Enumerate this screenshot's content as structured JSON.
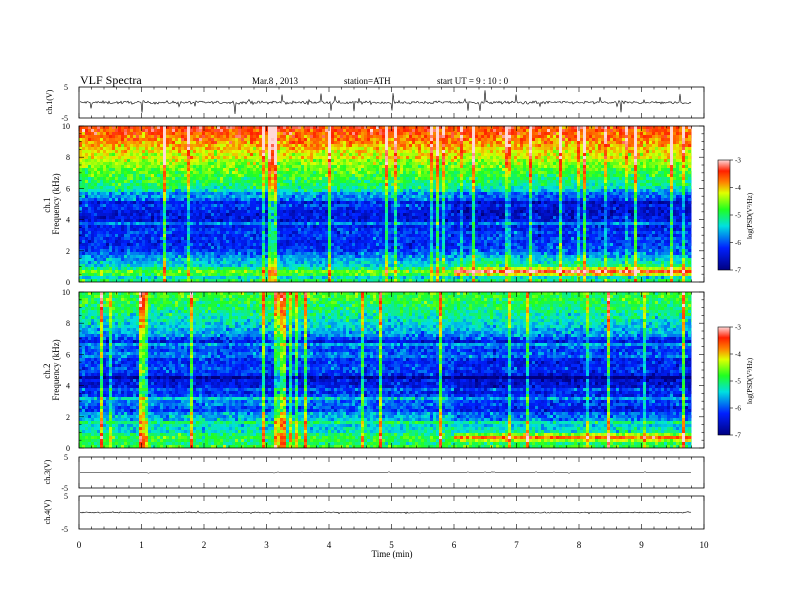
{
  "header": {
    "title": "VLF  Spectra",
    "date": "Mar.8  , 2013",
    "station": "station=ATH",
    "start": "start  UT  =   9 : 10 : 0"
  },
  "chart_data": [
    {
      "type": "line",
      "panel": "ch1-waveform",
      "ylabel": "ch.1(V)",
      "ylim": [
        -5,
        5
      ],
      "yticks": [
        "5",
        "-5"
      ],
      "xlim": [
        0,
        10
      ],
      "data_end_x": 9.8,
      "trace": {
        "baseline": 0,
        "typical_amplitude": 1,
        "spike_amplitude": 4
      }
    },
    {
      "type": "heatmap",
      "panel": "ch1-spectrogram",
      "ylabel": "ch.1\nFrequency  (kHz)",
      "ylim": [
        0,
        10
      ],
      "yticks": [
        "0",
        "2",
        "4",
        "6",
        "8",
        "10"
      ],
      "xlim": [
        0,
        10
      ],
      "data_end_x": 9.8,
      "regime_change_x": 6.0,
      "colorbar": {
        "label": "log(PSD(V²/Hz)",
        "range": [
          -7,
          -3
        ],
        "ticks": [
          "-3",
          "-4",
          "-5",
          "-6",
          "-7"
        ]
      },
      "approx_log_psd_profile": {
        "frequency_khz": [
          0.3,
          0.7,
          1.0,
          1.5,
          2.0,
          2.6,
          3.0,
          3.5,
          4.0,
          4.5,
          5.0,
          5.5,
          6.0,
          7.0,
          8.0,
          9.0,
          10.0
        ],
        "before_6min": [
          -5.0,
          -4.6,
          -5.4,
          -5.6,
          -6.1,
          -6.3,
          -6.0,
          -6.3,
          -6.4,
          -6.4,
          -6.0,
          -5.7,
          -5.1,
          -4.7,
          -4.3,
          -3.8,
          -3.4
        ],
        "after_6min": [
          -5.0,
          -3.2,
          -5.0,
          -5.4,
          -6.0,
          -6.1,
          -6.0,
          -6.3,
          -6.4,
          -6.6,
          -6.3,
          -6.0,
          -5.3,
          -4.8,
          -4.3,
          -3.8,
          -3.5
        ]
      }
    },
    {
      "type": "heatmap",
      "panel": "ch2-spectrogram",
      "ylabel": "ch.2\nFrequency  (kHz)",
      "ylim": [
        0,
        10
      ],
      "yticks": [
        "0",
        "2",
        "4",
        "6",
        "8",
        "10"
      ],
      "xlim": [
        0,
        10
      ],
      "data_end_x": 9.8,
      "regime_change_x": 6.0,
      "colorbar": {
        "label": "log(PSD(V²/Hz)",
        "range": [
          -7,
          -3
        ],
        "ticks": [
          "-3",
          "-4",
          "-5",
          "-6",
          "-7"
        ]
      },
      "approx_log_psd_profile": {
        "frequency_khz": [
          0.3,
          0.7,
          1.0,
          1.5,
          2.0,
          2.6,
          3.0,
          3.5,
          4.0,
          4.5,
          5.0,
          5.5,
          6.0,
          7.0,
          8.0,
          9.0,
          10.0
        ],
        "before_6min": [
          -5.0,
          -4.8,
          -5.3,
          -5.4,
          -5.6,
          -5.8,
          -5.8,
          -6.2,
          -6.4,
          -6.4,
          -6.0,
          -6.2,
          -6.1,
          -5.8,
          -5.4,
          -5.0,
          -4.7
        ],
        "after_6min": [
          -5.0,
          -3.6,
          -5.2,
          -5.5,
          -5.9,
          -6.1,
          -6.1,
          -6.3,
          -6.5,
          -6.6,
          -6.2,
          -6.3,
          -6.2,
          -5.8,
          -5.4,
          -5.0,
          -4.8
        ]
      }
    },
    {
      "type": "line",
      "panel": "ch3-waveform",
      "ylabel": "ch.3(V)",
      "ylim": [
        -5,
        5
      ],
      "yticks": [
        "5",
        "-5"
      ],
      "xlim": [
        0,
        10
      ],
      "data_end_x": 9.8,
      "trace": {
        "baseline": 0,
        "typical_amplitude": 0.1,
        "spike_amplitude": 0.4
      }
    },
    {
      "type": "line",
      "panel": "ch4-waveform",
      "ylabel": "ch.4(V)",
      "ylim": [
        -5,
        5
      ],
      "yticks": [
        "5",
        "-5"
      ],
      "xlim": [
        0,
        10
      ],
      "data_end_x": 9.8,
      "trace": {
        "baseline": 0,
        "typical_amplitude": 0.35,
        "spike_amplitude": 0.35
      }
    }
  ],
  "xaxis": {
    "label": "Time  (min)",
    "ticks": [
      "0",
      "1",
      "2",
      "3",
      "4",
      "5",
      "6",
      "7",
      "8",
      "9",
      "10"
    ]
  }
}
